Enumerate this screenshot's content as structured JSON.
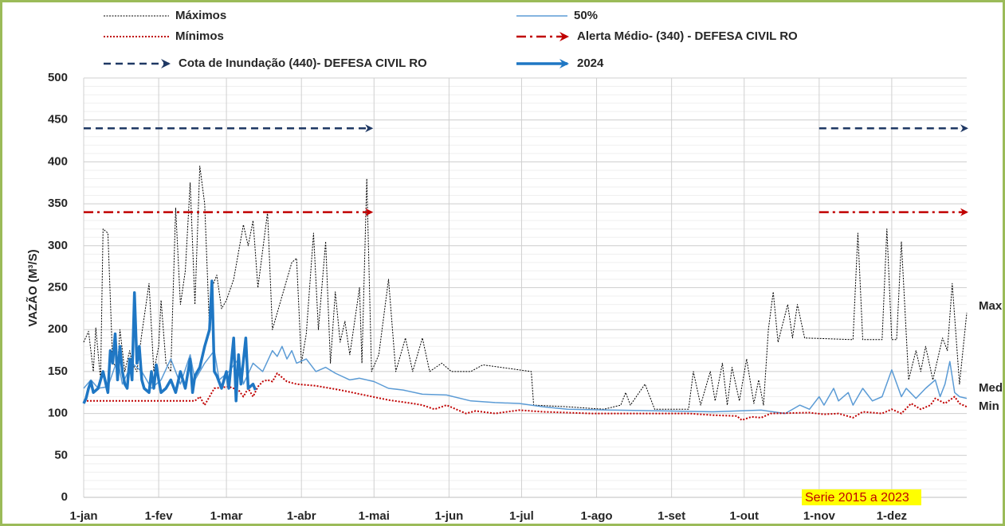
{
  "chart_data": {
    "type": "line",
    "y_label": "VAZÃO (M³/S)",
    "xlim": [
      0,
      365
    ],
    "xticks": [
      {
        "value": 0,
        "label": "1-jan"
      },
      {
        "value": 31,
        "label": "1-fev"
      },
      {
        "value": 59,
        "label": "1-mar"
      },
      {
        "value": 90,
        "label": "1-abr"
      },
      {
        "value": 120,
        "label": "1-mai"
      },
      {
        "value": 151,
        "label": "1-jun"
      },
      {
        "value": 181,
        "label": "1-jul"
      },
      {
        "value": 212,
        "label": "1-ago"
      },
      {
        "value": 243,
        "label": "1-set"
      },
      {
        "value": 273,
        "label": "1-out"
      },
      {
        "value": 304,
        "label": "1-nov"
      },
      {
        "value": 334,
        "label": "1-dez"
      }
    ],
    "ylim": [
      0,
      500
    ],
    "yticks": [
      0,
      50,
      100,
      150,
      200,
      250,
      300,
      350,
      400,
      450,
      500
    ],
    "grid": true,
    "minor_grid_step": 10,
    "annotations": [
      "Max",
      "Med",
      "Min",
      "Serie 2015 a 2023"
    ],
    "series": [
      {
        "name": "Máximos",
        "color": "#000000",
        "style": "dotted",
        "x": [
          0,
          2,
          4,
          5,
          7,
          8,
          10,
          12,
          14,
          15,
          17,
          19,
          20,
          22,
          24,
          27,
          29,
          31,
          32,
          34,
          36,
          38,
          40,
          42,
          44,
          46,
          48,
          50,
          52,
          53,
          55,
          57,
          59,
          62,
          66,
          68,
          70,
          72,
          76,
          78,
          82,
          86,
          88,
          90,
          92,
          95,
          97,
          100,
          102,
          104,
          106,
          108,
          110,
          114,
          115,
          117,
          119,
          122,
          126,
          129,
          133,
          136,
          140,
          143,
          148,
          152,
          160,
          165,
          185,
          186,
          200,
          215,
          222,
          224,
          226,
          232,
          236,
          250,
          252,
          255,
          259,
          261,
          264,
          266,
          268,
          271,
          274,
          277,
          279,
          281,
          283,
          285,
          287,
          291,
          293,
          295,
          298,
          318,
          320,
          322,
          330,
          332,
          334,
          336,
          338,
          341,
          344,
          346,
          348,
          351,
          355,
          357,
          359,
          362,
          365
        ],
        "values": [
          185,
          198,
          150,
          202,
          140,
          320,
          315,
          160,
          155,
          200,
          150,
          175,
          160,
          150,
          195,
          255,
          150,
          180,
          235,
          160,
          150,
          345,
          230,
          270,
          375,
          230,
          395,
          350,
          200,
          250,
          265,
          225,
          235,
          260,
          325,
          300,
          330,
          250,
          340,
          200,
          240,
          280,
          285,
          160,
          195,
          315,
          200,
          305,
          160,
          245,
          185,
          210,
          170,
          250,
          160,
          380,
          150,
          170,
          260,
          150,
          190,
          150,
          190,
          150,
          160,
          150,
          150,
          158,
          150,
          110,
          108,
          105,
          110,
          125,
          110,
          135,
          105,
          105,
          150,
          110,
          150,
          115,
          160,
          110,
          155,
          115,
          165,
          112,
          140,
          110,
          200,
          245,
          185,
          230,
          190,
          230,
          190,
          188,
          315,
          188,
          188,
          320,
          188,
          188,
          305,
          140,
          175,
          150,
          180,
          140,
          190,
          175,
          255,
          135,
          220
        ]
      },
      {
        "name": "50%",
        "color": "#5b9bd5",
        "style": "thin",
        "x": [
          0,
          3,
          6,
          10,
          14,
          16,
          20,
          24,
          28,
          32,
          36,
          40,
          44,
          46,
          50,
          54,
          56,
          60,
          64,
          66,
          70,
          74,
          78,
          80,
          82,
          84,
          86,
          88,
          92,
          96,
          100,
          104,
          110,
          114,
          120,
          126,
          132,
          140,
          150,
          160,
          170,
          180,
          190,
          200,
          220,
          240,
          260,
          280,
          290,
          296,
          300,
          304,
          306,
          310,
          312,
          316,
          318,
          322,
          326,
          330,
          334,
          338,
          340,
          344,
          348,
          352,
          354,
          356,
          358,
          360,
          362,
          365
        ],
        "values": [
          130,
          140,
          130,
          132,
          165,
          135,
          160,
          150,
          130,
          140,
          165,
          135,
          170,
          140,
          160,
          175,
          140,
          150,
          165,
          135,
          160,
          150,
          175,
          168,
          180,
          165,
          175,
          160,
          165,
          150,
          155,
          148,
          140,
          142,
          138,
          130,
          128,
          123,
          122,
          115,
          113,
          112,
          108,
          105,
          104,
          103,
          102,
          104,
          100,
          110,
          105,
          120,
          110,
          130,
          115,
          125,
          110,
          130,
          115,
          120,
          152,
          120,
          130,
          118,
          130,
          140,
          120,
          135,
          162,
          125,
          120,
          118
        ]
      },
      {
        "name": "Mínimos",
        "color": "#c00000",
        "style": "dotted",
        "x": [
          0,
          20,
          40,
          46,
          48,
          50,
          54,
          60,
          64,
          66,
          68,
          70,
          72,
          74,
          76,
          78,
          80,
          84,
          88,
          96,
          106,
          116,
          126,
          136,
          140,
          145,
          150,
          158,
          162,
          170,
          180,
          190,
          210,
          230,
          250,
          260,
          270,
          272,
          276,
          280,
          284,
          300,
          306,
          312,
          318,
          322,
          330,
          334,
          338,
          342,
          346,
          350,
          352,
          356,
          360,
          362,
          365
        ],
        "values": [
          115,
          115,
          115,
          115,
          120,
          110,
          130,
          132,
          128,
          120,
          130,
          120,
          132,
          138,
          140,
          138,
          148,
          138,
          135,
          133,
          128,
          122,
          116,
          112,
          110,
          105,
          110,
          100,
          103,
          100,
          104,
          102,
          100,
          100,
          100,
          98,
          97,
          92,
          96,
          95,
          100,
          101,
          99,
          100,
          95,
          102,
          100,
          105,
          100,
          112,
          105,
          110,
          118,
          112,
          120,
          112,
          108
        ]
      },
      {
        "name": "Alerta Médio-  (340) - DEFESA CIVIL RO",
        "color": "#c00000",
        "style": "dashdot",
        "arrow": true,
        "x": [
          0,
          119,
          null,
          304,
          365
        ],
        "values": [
          340,
          340,
          null,
          340,
          340
        ]
      },
      {
        "name": "Cota de Inundação  (440)- DEFESA CIVIL RO",
        "color": "#1f3864",
        "style": "dashed",
        "arrow": true,
        "x": [
          0,
          119,
          null,
          304,
          365
        ],
        "values": [
          440,
          440,
          null,
          440,
          440
        ]
      },
      {
        "name": "2024",
        "color": "#1f77c4",
        "style": "thick",
        "x": [
          0,
          1,
          2,
          3,
          4,
          6,
          8,
          10,
          11,
          12,
          13,
          14,
          15,
          16,
          17,
          18,
          19,
          20,
          21,
          22,
          23,
          24,
          25,
          27,
          28,
          29,
          30,
          31,
          32,
          34,
          36,
          38,
          40,
          42,
          44,
          45,
          46,
          48,
          50,
          52,
          53,
          54,
          55,
          57,
          59,
          60,
          62,
          63,
          64,
          65,
          67,
          68,
          70,
          71
        ],
        "values": [
          112,
          118,
          130,
          138,
          125,
          130,
          150,
          125,
          175,
          160,
          195,
          140,
          180,
          150,
          135,
          130,
          165,
          140,
          244,
          160,
          180,
          140,
          130,
          125,
          150,
          130,
          158,
          140,
          125,
          130,
          140,
          125,
          150,
          130,
          165,
          125,
          145,
          155,
          180,
          200,
          258,
          150,
          145,
          130,
          150,
          130,
          190,
          115,
          170,
          135,
          190,
          130,
          135,
          128
        ]
      }
    ]
  }
}
